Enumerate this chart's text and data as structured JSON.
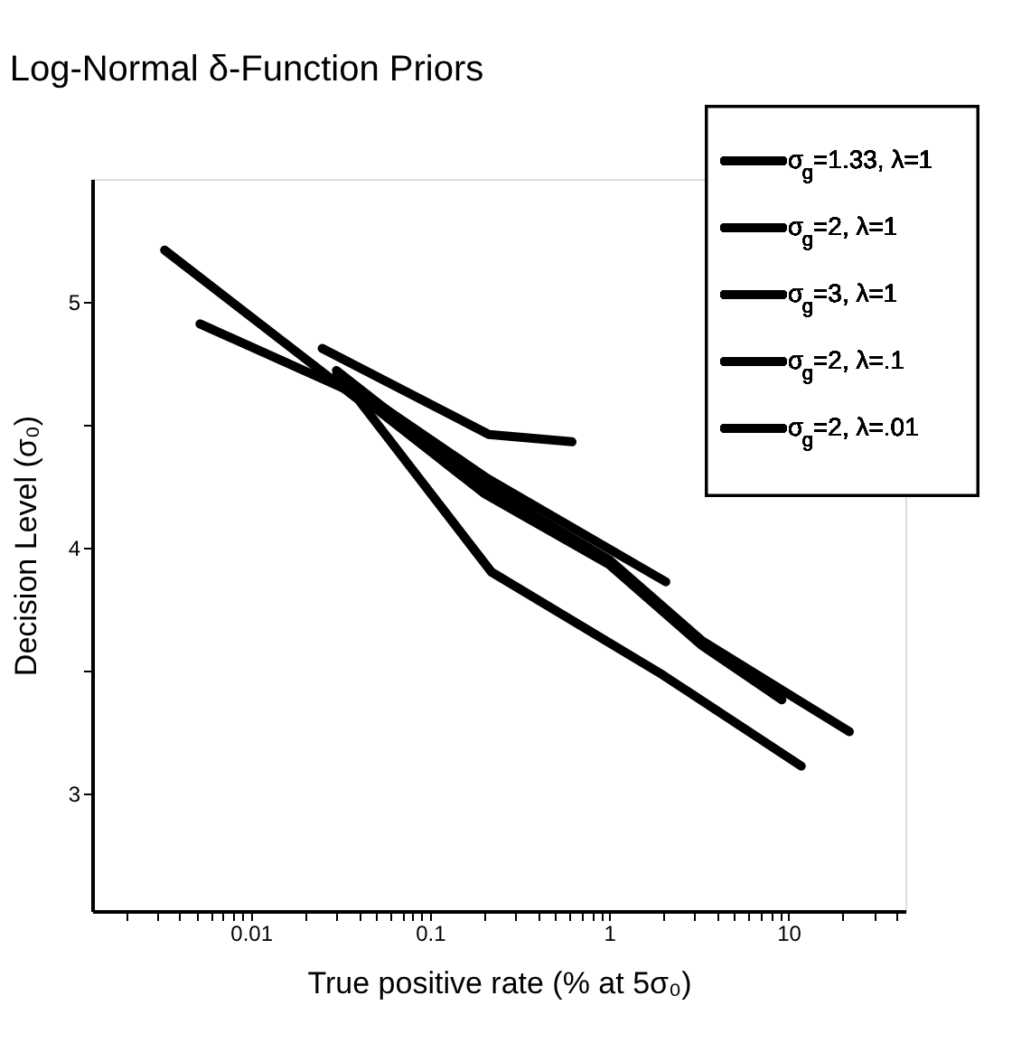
{
  "chart_data": {
    "type": "line",
    "title": "Log-Normal δ-Function Priors",
    "xlabel": "True positive rate (% at 5σ₀)",
    "ylabel": "Decision Level (σ₀)",
    "log": "x",
    "grid": false,
    "legend": "top right",
    "marker": "none",
    "line_style": "solid",
    "xlim": [
      0.0013,
      45
    ],
    "ylim": [
      2.52,
      5.5
    ],
    "xticks": [
      {
        "value": 0.002,
        "label": null
      },
      {
        "value": 0.003,
        "label": null
      },
      {
        "value": 0.004,
        "label": null
      },
      {
        "value": 0.005,
        "label": null
      },
      {
        "value": 0.006,
        "label": null
      },
      {
        "value": 0.007,
        "label": null
      },
      {
        "value": 0.008,
        "label": null
      },
      {
        "value": 0.009,
        "label": null
      },
      0.01,
      {
        "value": 0.02,
        "label": null
      },
      {
        "value": 0.03,
        "label": null
      },
      {
        "value": 0.04,
        "label": null
      },
      {
        "value": 0.05,
        "label": null
      },
      {
        "value": 0.06,
        "label": null
      },
      {
        "value": 0.07,
        "label": null
      },
      {
        "value": 0.08,
        "label": null
      },
      {
        "value": 0.09,
        "label": null
      },
      0.1,
      {
        "value": 0.2,
        "label": null
      },
      {
        "value": 0.3,
        "label": null
      },
      {
        "value": 0.4,
        "label": null
      },
      {
        "value": 0.5,
        "label": null
      },
      {
        "value": 0.6,
        "label": null
      },
      {
        "value": 0.7,
        "label": null
      },
      {
        "value": 0.8,
        "label": null
      },
      {
        "value": 0.9,
        "label": null
      },
      1,
      {
        "value": 2,
        "label": null
      },
      {
        "value": 3,
        "label": null
      },
      {
        "value": 4,
        "label": null
      },
      {
        "value": 5,
        "label": null
      },
      {
        "value": 6,
        "label": null
      },
      {
        "value": 7,
        "label": null
      },
      {
        "value": 8,
        "label": null
      },
      {
        "value": 9,
        "label": null
      },
      10,
      {
        "value": 20,
        "label": null
      },
      {
        "value": 30,
        "label": null
      },
      {
        "value": 40,
        "label": null
      }
    ],
    "yticks": [
      3,
      {
        "value": 3.5,
        "label": null
      },
      4,
      {
        "value": 4.5,
        "label": null
      },
      5
    ],
    "series": [
      {
        "name": "σ$_{g}$=1.33, λ=1",
        "color": "#000000",
        "x": [
          0.0033,
          0.04,
          0.22,
          2,
          11.8
        ],
        "values": [
          5.21,
          4.6,
          3.9,
          3.48,
          3.11
        ]
      },
      {
        "name": "σ$_{g}$=2, λ=1",
        "color": "#000000",
        "x": [
          0.0052,
          0.04,
          0.2,
          1,
          3.3,
          9.2
        ],
        "values": [
          4.91,
          4.62,
          4.22,
          3.93,
          3.6,
          3.38
        ]
      },
      {
        "name": "σ$_{g}$=3, λ=1",
        "color": "#000000",
        "x": [
          0.03,
          0.2,
          1,
          3.3,
          21.9
        ],
        "values": [
          4.72,
          4.25,
          3.95,
          3.62,
          3.25
        ]
      },
      {
        "name": "σ$_{g}$=2, λ=.1",
        "color": "#000000",
        "x": [
          0.03,
          0.21,
          2.07
        ],
        "values": [
          4.7,
          4.28,
          3.86
        ]
      },
      {
        "name": "σ$_{g}$=2, λ=.01",
        "color": "#000000",
        "x": [
          0.025,
          0.213,
          0.62
        ],
        "values": [
          4.81,
          4.46,
          4.43
        ]
      }
    ]
  }
}
